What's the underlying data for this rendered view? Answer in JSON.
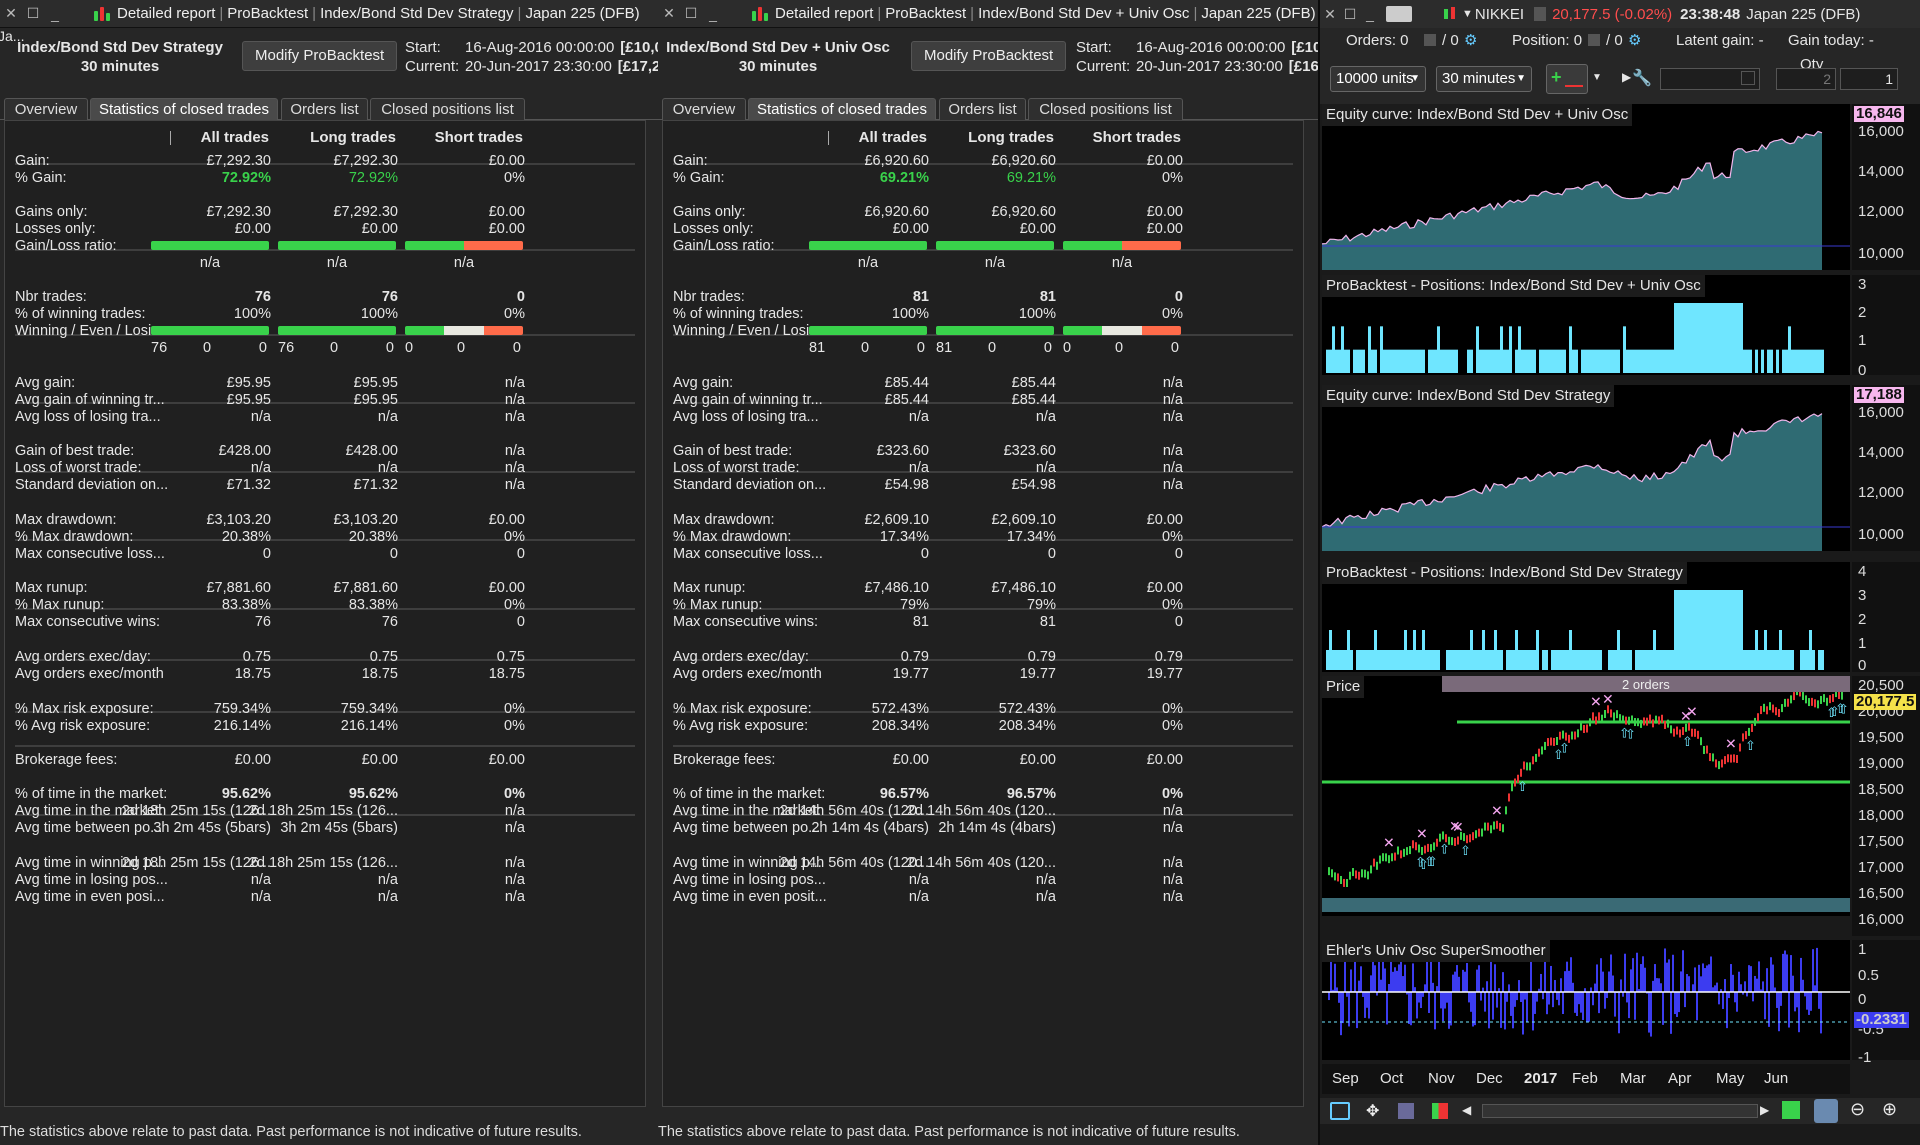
{
  "windows": [
    {
      "title": {
        "app": "Detailed report",
        "module": "ProBacktest",
        "strategy": "Index/Bond Std Dev Strategy",
        "instrument": "Japan 225 (DFB)"
      },
      "name_line1": "Index/Bond Std Dev Strategy",
      "name_line2": "30 minutes",
      "name_prefix": "Ja...",
      "modify_label": "Modify ProBacktest",
      "start_label": "Start:",
      "start_value": "16-Aug-2016 00:00:00",
      "start_extra": "[£10,0",
      "current_label": "Current:",
      "current_value": "20-Jun-2017 23:30:00",
      "current_extra": "[£17,2",
      "tabs": [
        "Overview",
        "Statistics of closed trades",
        "Orders list",
        "Closed positions list"
      ],
      "columns": [
        "All trades",
        "Long trades",
        "Short trades"
      ],
      "rows": [
        [
          "Gain:",
          "£7,292.30",
          "£7,292.30",
          "£0.00"
        ],
        [
          "% Gain:",
          "72.92%",
          "72.92%",
          "0%"
        ],
        [
          "Gains only:",
          "£7,292.30",
          "£7,292.30",
          "£0.00"
        ],
        [
          "Losses only:",
          "£0.00",
          "£0.00",
          "£0.00"
        ],
        [
          "Gain/Loss ratio:",
          "",
          "",
          ""
        ],
        [
          "",
          "n/a",
          "n/a",
          "n/a"
        ],
        [
          "Nbr trades:",
          "76",
          "76",
          "0"
        ],
        [
          "% of winning trades:",
          "100%",
          "100%",
          "0%"
        ],
        [
          "Winning / Even / Losi...",
          "",
          "",
          ""
        ],
        [
          "",
          "76|0|0",
          "76|0|0",
          "0|0|0"
        ],
        [
          "Avg gain:",
          "£95.95",
          "£95.95",
          "n/a"
        ],
        [
          "Avg gain of winning tr...",
          "£95.95",
          "£95.95",
          "n/a"
        ],
        [
          "Avg loss of losing tra...",
          "n/a",
          "n/a",
          "n/a"
        ],
        [
          "Gain of best trade:",
          "£428.00",
          "£428.00",
          "n/a"
        ],
        [
          "Loss of worst trade:",
          "n/a",
          "n/a",
          "n/a"
        ],
        [
          "Standard deviation on...",
          "£71.32",
          "£71.32",
          "n/a"
        ],
        [
          "Max drawdown:",
          "£3,103.20",
          "£3,103.20",
          "£0.00"
        ],
        [
          "% Max drawdown:",
          "20.38%",
          "20.38%",
          "0%"
        ],
        [
          "Max consecutive loss...",
          "0",
          "0",
          "0"
        ],
        [
          "Max runup:",
          "£7,881.60",
          "£7,881.60",
          "£0.00"
        ],
        [
          "% Max runup:",
          "83.38%",
          "83.38%",
          "0%"
        ],
        [
          "Max consecutive wins:",
          "76",
          "76",
          "0"
        ],
        [
          "Avg orders exec/day:",
          "0.75",
          "0.75",
          "0.75"
        ],
        [
          "Avg orders exec/month",
          "18.75",
          "18.75",
          "18.75"
        ],
        [
          "% Max risk exposure:",
          "759.34%",
          "759.34%",
          "0%"
        ],
        [
          "% Avg risk exposure:",
          "216.14%",
          "216.14%",
          "0%"
        ],
        [
          "Brokerage fees:",
          "£0.00",
          "£0.00",
          "£0.00"
        ],
        [
          "% of time in the market:",
          "95.62%",
          "95.62%",
          "0%"
        ],
        [
          "Avg time in the market:",
          "2d 18h 25m 15s (126...",
          "2d 18h 25m 15s (126...",
          "n/a"
        ],
        [
          "Avg time between po...",
          "3h 2m 45s (5bars)",
          "3h 2m 45s (5bars)",
          "n/a"
        ],
        [
          "Avg time in winning p...",
          "2d 18h 25m 15s (126...",
          "2d 18h 25m 15s (126...",
          "n/a"
        ],
        [
          "Avg time in losing pos...",
          "n/a",
          "n/a",
          "n/a"
        ],
        [
          "Avg time in even posi...",
          "n/a",
          "n/a",
          "n/a"
        ]
      ],
      "footer": "The statistics above relate to past data. Past performance is not indicative of future results."
    },
    {
      "title": {
        "app": "Detailed report",
        "module": "ProBacktest",
        "strategy": "Index/Bond Std Dev + Univ Osc",
        "instrument": "Japan 225 (DFB)"
      },
      "name_line1": "Index/Bond Std Dev + Univ Osc",
      "name_line2": "30 minutes",
      "name_prefix": "",
      "modify_label": "Modify ProBacktest",
      "start_label": "Start:",
      "start_value": "16-Aug-2016 00:00:00",
      "start_extra": "[£10,",
      "current_label": "Current:",
      "current_value": "20-Jun-2017 23:30:00",
      "current_extra": "[£16,",
      "tabs": [
        "Overview",
        "Statistics of closed trades",
        "Orders list",
        "Closed positions list"
      ],
      "columns": [
        "All trades",
        "Long trades",
        "Short trades"
      ],
      "rows": [
        [
          "Gain:",
          "£6,920.60",
          "£6,920.60",
          "£0.00"
        ],
        [
          "% Gain:",
          "69.21%",
          "69.21%",
          "0%"
        ],
        [
          "Gains only:",
          "£6,920.60",
          "£6,920.60",
          "£0.00"
        ],
        [
          "Losses only:",
          "£0.00",
          "£0.00",
          "£0.00"
        ],
        [
          "Gain/Loss ratio:",
          "",
          "",
          ""
        ],
        [
          "",
          "n/a",
          "n/a",
          "n/a"
        ],
        [
          "Nbr trades:",
          "81",
          "81",
          "0"
        ],
        [
          "% of winning trades:",
          "100%",
          "100%",
          "0%"
        ],
        [
          "Winning / Even / Losi...",
          "",
          "",
          ""
        ],
        [
          "",
          "81|0|0",
          "81|0|0",
          "0|0|0"
        ],
        [
          "Avg gain:",
          "£85.44",
          "£85.44",
          "n/a"
        ],
        [
          "Avg gain of winning tr...",
          "£85.44",
          "£85.44",
          "n/a"
        ],
        [
          "Avg loss of losing tra...",
          "n/a",
          "n/a",
          "n/a"
        ],
        [
          "Gain of best trade:",
          "£323.60",
          "£323.60",
          "n/a"
        ],
        [
          "Loss of worst trade:",
          "n/a",
          "n/a",
          "n/a"
        ],
        [
          "Standard deviation on...",
          "£54.98",
          "£54.98",
          "n/a"
        ],
        [
          "Max drawdown:",
          "£2,609.10",
          "£2,609.10",
          "£0.00"
        ],
        [
          "% Max drawdown:",
          "17.34%",
          "17.34%",
          "0%"
        ],
        [
          "Max consecutive loss...",
          "0",
          "0",
          "0"
        ],
        [
          "Max runup:",
          "£7,486.10",
          "£7,486.10",
          "£0.00"
        ],
        [
          "% Max runup:",
          "79%",
          "79%",
          "0%"
        ],
        [
          "Max consecutive wins:",
          "81",
          "81",
          "0"
        ],
        [
          "Avg orders exec/day:",
          "0.79",
          "0.79",
          "0.79"
        ],
        [
          "Avg orders exec/month",
          "19.77",
          "19.77",
          "19.77"
        ],
        [
          "% Max risk exposure:",
          "572.43%",
          "572.43%",
          "0%"
        ],
        [
          "% Avg risk exposure:",
          "208.34%",
          "208.34%",
          "0%"
        ],
        [
          "Brokerage fees:",
          "£0.00",
          "£0.00",
          "£0.00"
        ],
        [
          "% of time in the market:",
          "96.57%",
          "96.57%",
          "0%"
        ],
        [
          "Avg time in the market:",
          "2d 14h 56m 40s (120...",
          "2d 14h 56m 40s (120...",
          "n/a"
        ],
        [
          "Avg time between po...",
          "2h 14m 4s (4bars)",
          "2h 14m 4s (4bars)",
          "n/a"
        ],
        [
          "Avg time in winning p...",
          "2d 14h 56m 40s (120...",
          "2d 14h 56m 40s (120...",
          "n/a"
        ],
        [
          "Avg time in losing pos...",
          "n/a",
          "n/a",
          "n/a"
        ],
        [
          "Avg time in even posit...",
          "n/a",
          "n/a",
          "n/a"
        ]
      ],
      "footer": "The statistics above relate to past data. Past performance is not indicative of future results."
    }
  ],
  "chart": {
    "instrument": "NIKKEI",
    "price": "20,177.5 (-0.02%)",
    "time": "23:38:48",
    "market": "Japan 225 (DFB)",
    "orders_label": "Orders: 0",
    "orders_sep": "/ 0",
    "position_label": "Position: 0",
    "position_sep": "/ 0",
    "latent_gain": "Latent gain: -",
    "gain_today": "Gain today: -",
    "qty_label": "Qty",
    "units": "10000 units",
    "timeframe": "30 minutes",
    "qty_value": "1",
    "qty_value2": "2",
    "panels": {
      "equity1": {
        "title": "Equity curve: Index/Bond Std Dev + Univ Osc",
        "last": "16,846",
        "ticks": [
          "16,000",
          "14,000",
          "12,000",
          "10,000"
        ]
      },
      "pos1": {
        "title": "ProBacktest - Positions: Index/Bond Std Dev + Univ Osc",
        "ticks": [
          "3",
          "2",
          "1",
          "0"
        ]
      },
      "equity2": {
        "title": "Equity curve: Index/Bond Std Dev Strategy",
        "last": "17,188",
        "ticks": [
          "16,000",
          "14,000",
          "12,000",
          "10,000"
        ]
      },
      "pos2": {
        "title": "ProBacktest - Positions: Index/Bond Std Dev Strategy",
        "ticks": [
          "4",
          "3",
          "2",
          "1",
          "0"
        ]
      },
      "price": {
        "title": "Price",
        "last": "20,177.5",
        "ticks": [
          "20,500",
          "20,000",
          "19,500",
          "19,000",
          "18,500",
          "18,000",
          "17,500",
          "17,000",
          "16,500",
          "16,000"
        ],
        "orders_text": "2 orders"
      },
      "osc": {
        "title": "Ehler's Univ Osc SuperSmoother",
        "last": "-0.2331",
        "ticks": [
          "1",
          "0.5",
          "0",
          "-0.5",
          "-1"
        ]
      }
    },
    "months": [
      "Sep",
      "Oct",
      "Nov",
      "Dec",
      "2017",
      "Feb",
      "Mar",
      "Apr",
      "May",
      "Jun"
    ]
  },
  "colors": {
    "accent_green": "#39d24b",
    "equity_fill": "#2f6b73",
    "position_fill": "#6fe6ff",
    "osc_fill": "#3c3cf0",
    "loss_red": "#ff6b4a"
  }
}
